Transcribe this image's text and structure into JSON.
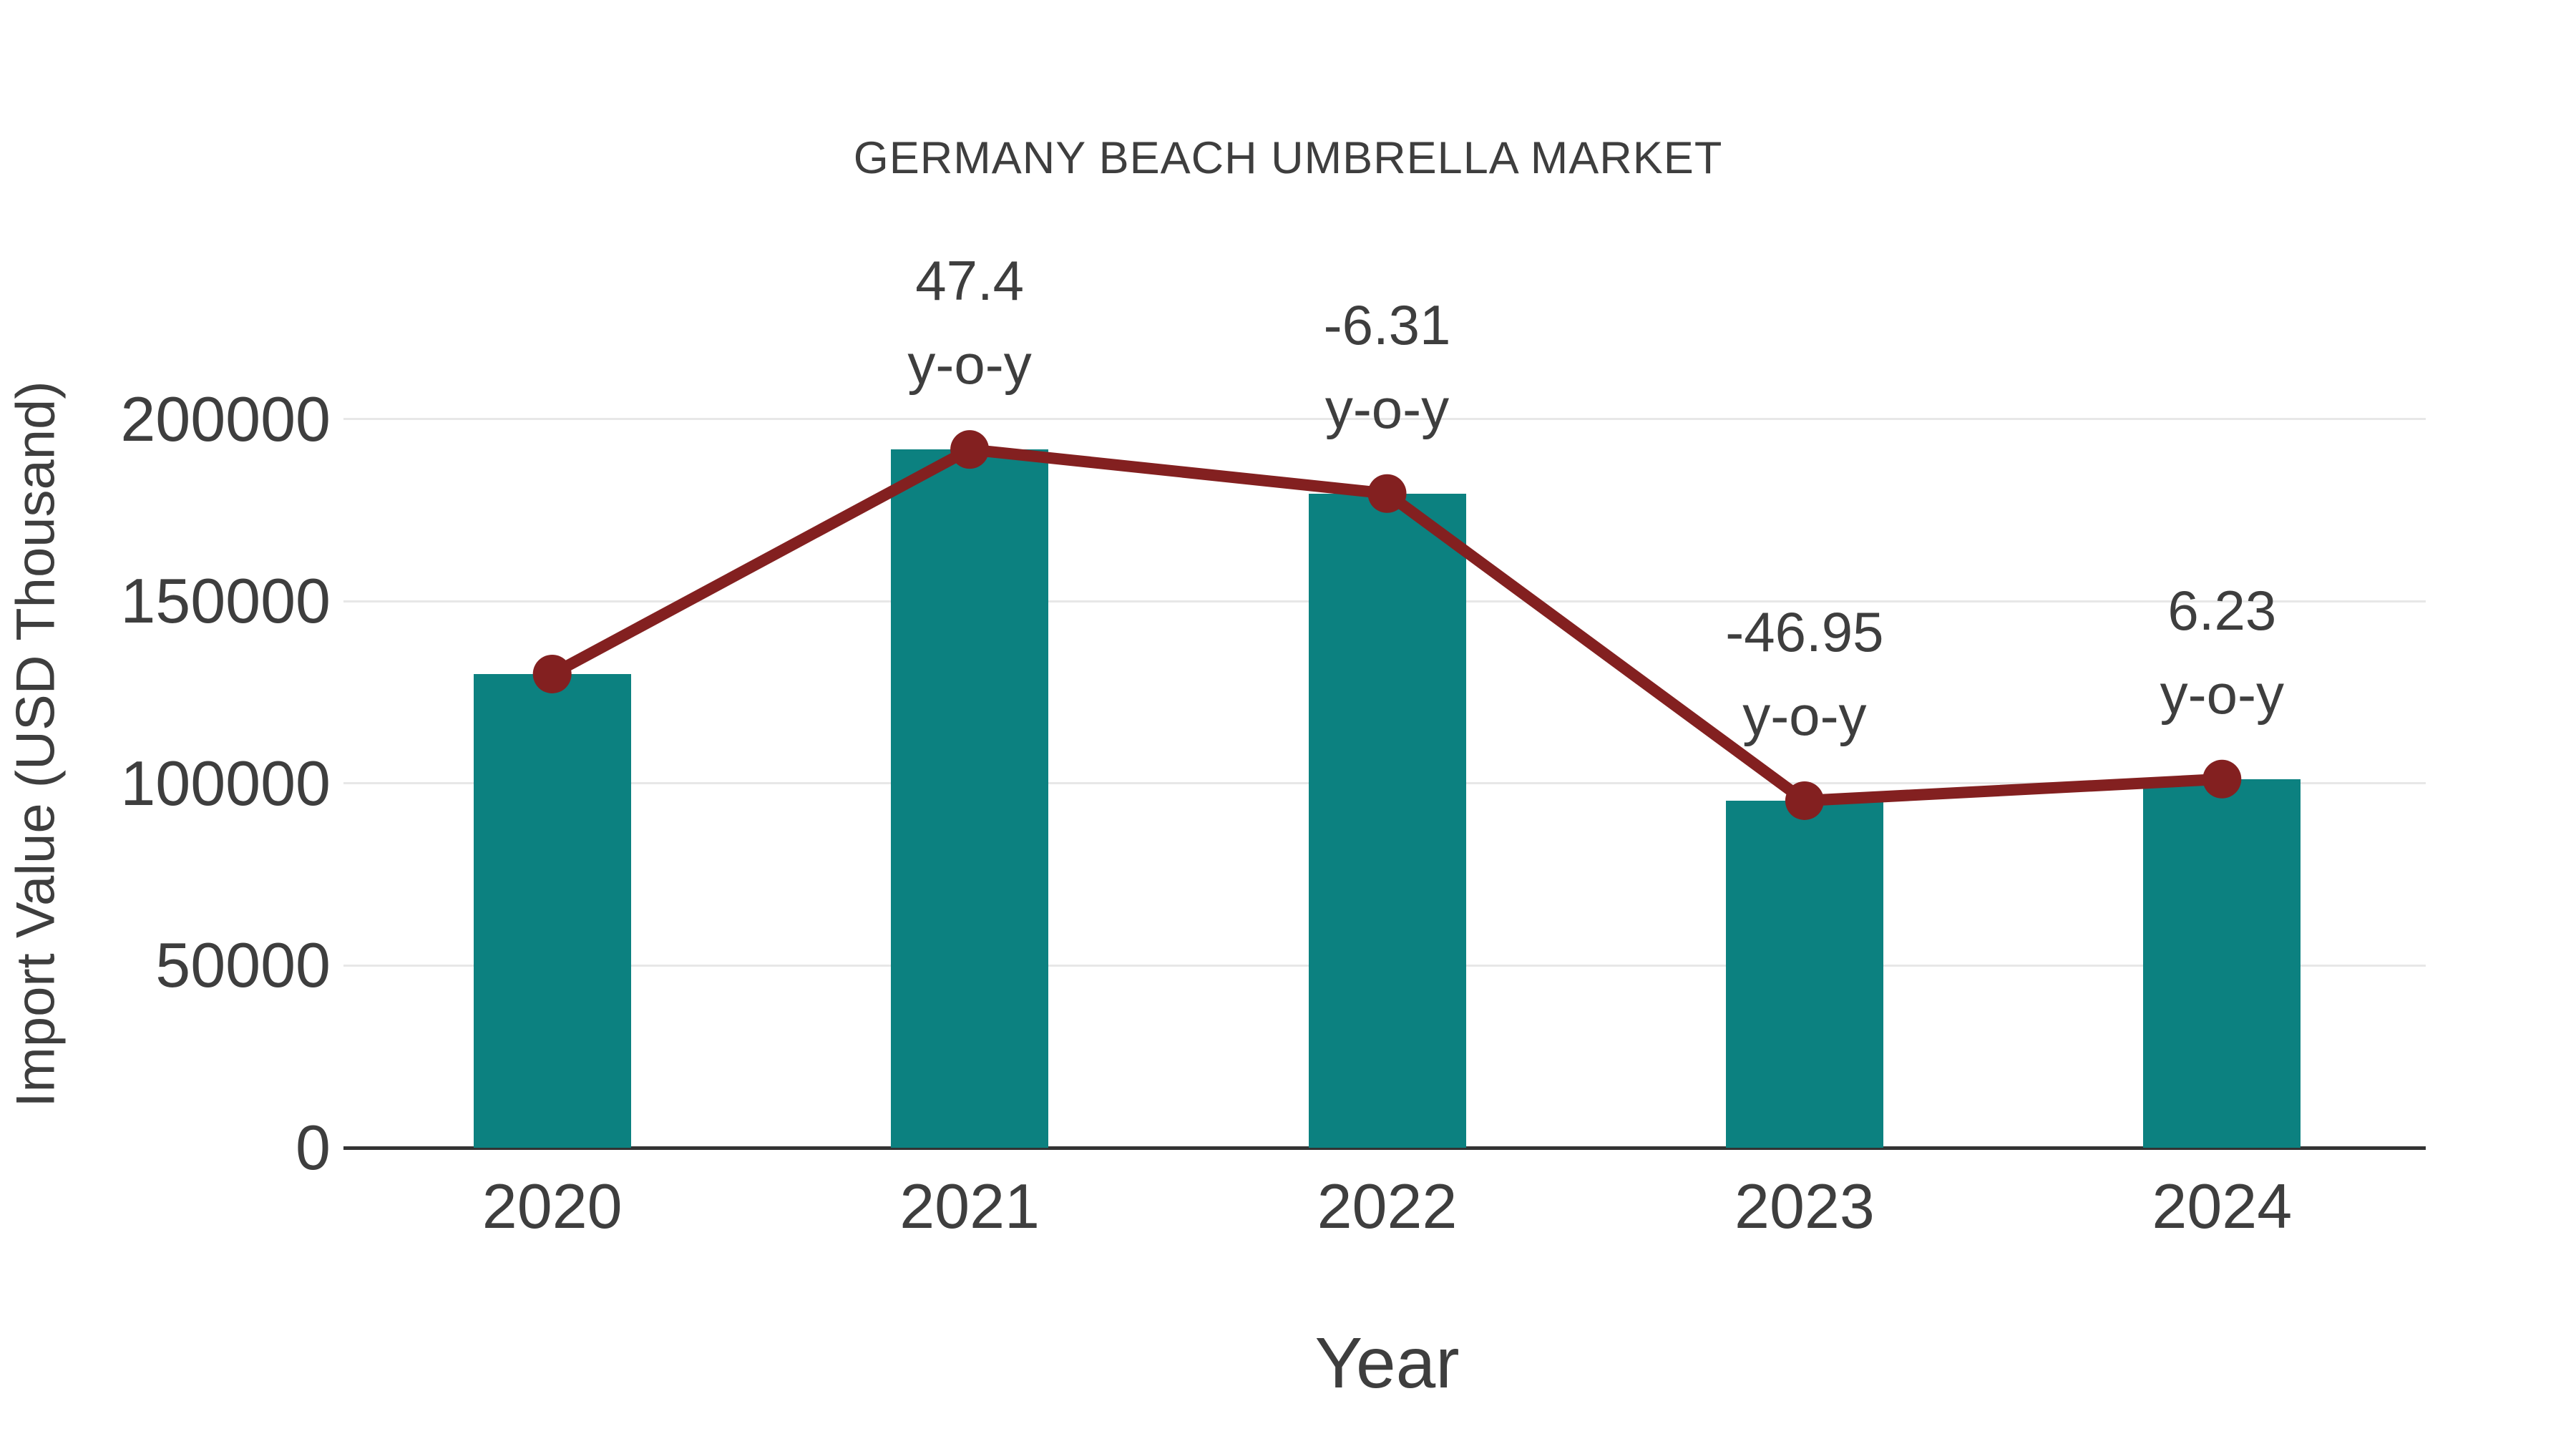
{
  "title": "GERMANY BEACH UMBRELLA MARKET",
  "axes": {
    "x_title": "Year",
    "y_title": "Import Value (USD Thousand)"
  },
  "colors": {
    "bar": "#0c8180",
    "line": "#832020",
    "text": "#3e3e3e",
    "grid": "#e7e7e7",
    "axis": "#333333",
    "background": "#ffffff"
  },
  "chart_data": {
    "type": "bar",
    "subtype": "bar-with-line-overlay",
    "title": "GERMANY BEACH UMBRELLA MARKET",
    "xlabel": "Year",
    "ylabel": "Import Value (USD Thousand)",
    "categories": [
      "2020",
      "2021",
      "2022",
      "2023",
      "2024"
    ],
    "series": [
      {
        "name": "Import Value bars",
        "type": "bar",
        "color": "#0c8180",
        "values": [
          130000,
          191620,
          179530,
          95240,
          101170
        ]
      },
      {
        "name": "Import Value trend",
        "type": "line",
        "color": "#832020",
        "marker": "circle",
        "values": [
          130000,
          191620,
          179530,
          95240,
          101170
        ]
      }
    ],
    "annotations": [
      {
        "category": "2021",
        "line1": "47.4",
        "line2": "y-o-y"
      },
      {
        "category": "2022",
        "line1": "-6.31",
        "line2": "y-o-y"
      },
      {
        "category": "2023",
        "line1": "-46.95",
        "line2": "y-o-y"
      },
      {
        "category": "2024",
        "line1": "6.23",
        "line2": "y-o-y"
      }
    ],
    "yticks": [
      0,
      50000,
      100000,
      150000,
      200000
    ],
    "ylim": [
      0,
      220000
    ],
    "grid": true,
    "legend_position": "none"
  }
}
